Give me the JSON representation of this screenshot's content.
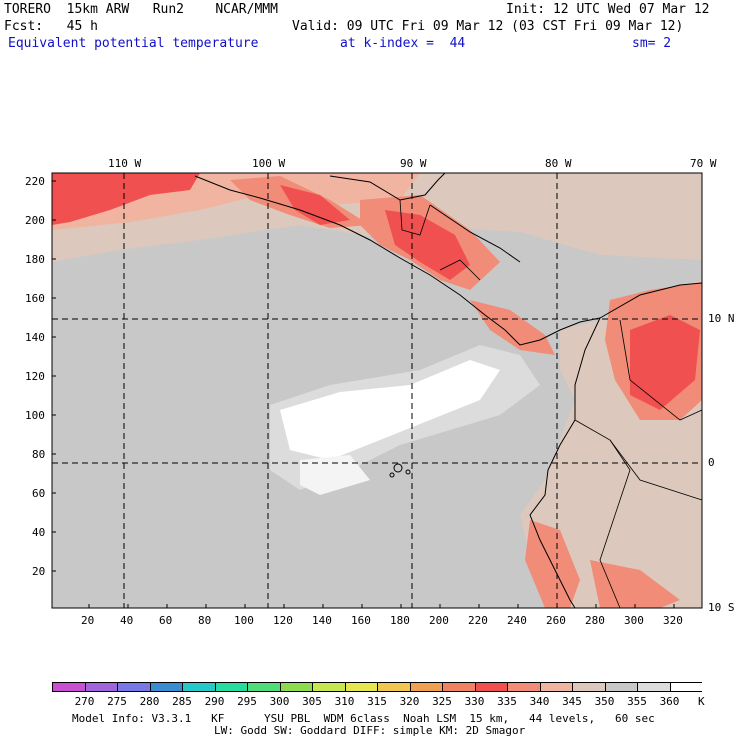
{
  "header": {
    "line1_left": "TORERO  15km ARW   Run2    NCAR/MMM",
    "line1_right": "Init: 12 UTC Wed 07 Mar 12",
    "line2_left": "Fcst:   45 h",
    "line2_right": "Valid: 09 UTC Fri 09 Mar 12 (03 CST Fri 09 Mar 12)",
    "field": "Equivalent potential temperature",
    "level": "at k-index =  44",
    "smoothing": "sm= 2"
  },
  "map": {
    "lon_labels": [
      "110 W",
      "100 W",
      "90 W",
      "80 W",
      "70 W"
    ],
    "lat_labels": [
      "10 N",
      "0",
      "10 S"
    ],
    "y_ticks": [
      "220",
      "200",
      "180",
      "160",
      "140",
      "120",
      "100",
      "80",
      "60",
      "40",
      "20"
    ],
    "x_ticks": [
      "20",
      "40",
      "60",
      "80",
      "100",
      "120",
      "140",
      "160",
      "180",
      "200",
      "220",
      "240",
      "260",
      "280",
      "300",
      "320"
    ]
  },
  "colorbar": {
    "labels": [
      "270",
      "275",
      "280",
      "285",
      "290",
      "295",
      "300",
      "305",
      "310",
      "315",
      "320",
      "325",
      "330",
      "335",
      "340",
      "345",
      "350",
      "355",
      "360"
    ],
    "unit": "K",
    "colors": [
      "#c850d2",
      "#a064dc",
      "#7878e6",
      "#3c8cd2",
      "#28c8c8",
      "#28dca0",
      "#50dc78",
      "#8cdc50",
      "#c8e650",
      "#e6e650",
      "#f0c850",
      "#f0a050",
      "#f08264",
      "#f05050",
      "#f08c78",
      "#f0b4a0",
      "#dcc8bc",
      "#c8c8c8",
      "#dcdcdc",
      "#ffffff"
    ]
  },
  "footer": {
    "line1": "Model Info: V3.3.1   KF      YSU PBL  WDM 6class  Noah LSM  15 km,   44 levels,   60 sec",
    "line2": "LW: Godd SW: Goddard DIFF: simple KM: 2D Smagor"
  }
}
